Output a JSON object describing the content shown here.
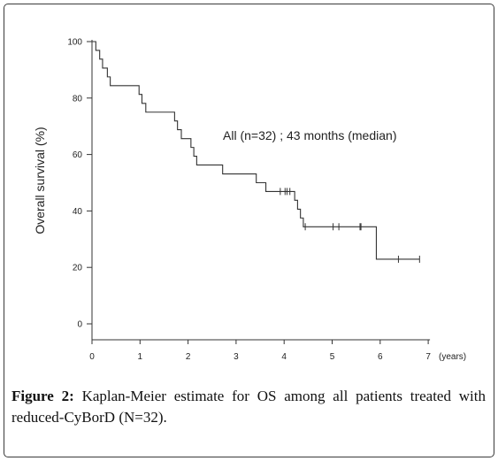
{
  "chart_data": {
    "type": "line",
    "xlabel": "(years)",
    "ylabel": "Overall survival  (%)",
    "xlim": [
      0,
      7
    ],
    "ylim": [
      0,
      100
    ],
    "x_ticks": [
      "0",
      "1",
      "2",
      "3",
      "4",
      "5",
      "6",
      "7"
    ],
    "y_ticks": [
      "0",
      "20",
      "40",
      "60",
      "80",
      "100"
    ],
    "grid": false,
    "annotation": "All (n=32) ; 43 months (median)",
    "series": [
      {
        "step_points": [
          [
            0,
            100
          ],
          [
            0.08,
            96.9
          ],
          [
            0.16,
            93.8
          ],
          [
            0.22,
            90.6
          ],
          [
            0.32,
            87.5
          ],
          [
            0.38,
            84.4
          ],
          [
            0.98,
            81.3
          ],
          [
            1.04,
            78.1
          ],
          [
            1.12,
            75.0
          ],
          [
            1.72,
            71.9
          ],
          [
            1.78,
            68.8
          ],
          [
            1.86,
            65.6
          ],
          [
            2.06,
            62.5
          ],
          [
            2.12,
            59.4
          ],
          [
            2.18,
            56.3
          ],
          [
            2.72,
            53.1
          ],
          [
            3.42,
            50.0
          ],
          [
            3.62,
            46.9
          ],
          [
            4.22,
            43.8
          ],
          [
            4.28,
            40.6
          ],
          [
            4.34,
            37.5
          ],
          [
            4.4,
            34.4
          ],
          [
            5.92,
            22.9
          ],
          [
            6.82,
            22.9
          ]
        ],
        "censored": [
          [
            3.92,
            46.9
          ],
          [
            4.02,
            46.9
          ],
          [
            4.06,
            46.9
          ],
          [
            4.12,
            46.9
          ],
          [
            4.44,
            34.4
          ],
          [
            5.02,
            34.4
          ],
          [
            5.14,
            34.4
          ],
          [
            5.58,
            34.4
          ],
          [
            5.6,
            34.4
          ],
          [
            6.38,
            22.9
          ],
          [
            6.82,
            22.9
          ]
        ]
      }
    ]
  },
  "caption": {
    "label": "Figure 2:",
    "text": " Kaplan-Meier estimate for OS among all patients treated with reduced-CyBorD (N=32)."
  }
}
